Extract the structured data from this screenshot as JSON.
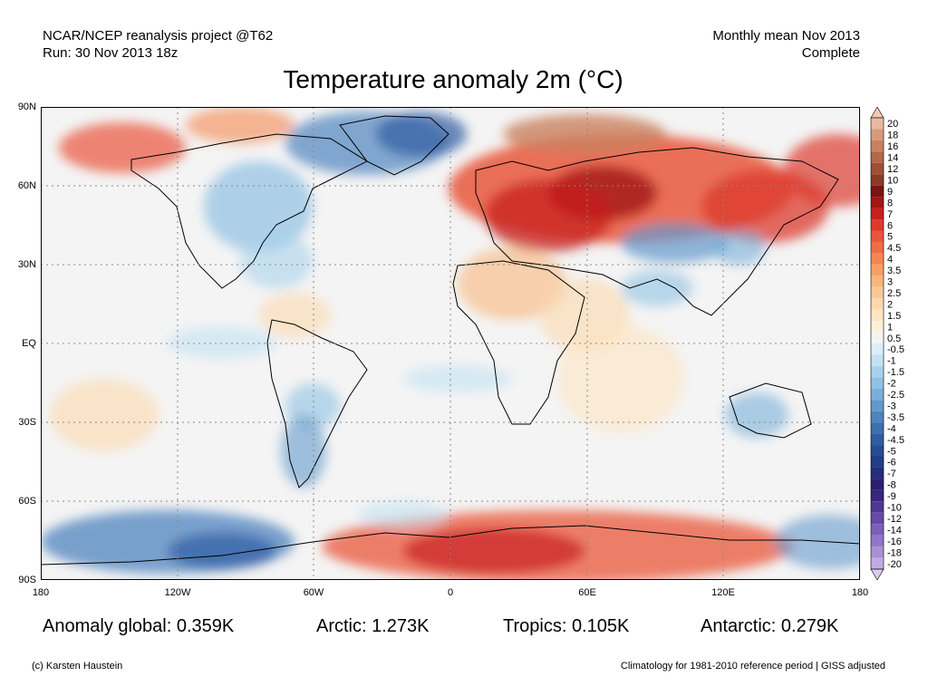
{
  "header": {
    "source_line1": "NCAR/NCEP reanalysis project @T62",
    "source_line2": "Run: 30 Nov 2013 18z",
    "period_line1": "Monthly mean Nov 2013",
    "period_line2": "Complete"
  },
  "title": "Temperature anomaly 2m (°C)",
  "lat_labels": [
    "90N",
    "60N",
    "30N",
    "EQ",
    "30S",
    "60S",
    "90S"
  ],
  "lon_labels": [
    "180",
    "120W",
    "60W",
    "0",
    "60E",
    "120E",
    "180"
  ],
  "legend": {
    "levels": [
      "20",
      "18",
      "16",
      "14",
      "12",
      "10",
      "9",
      "8",
      "7",
      "6",
      "5",
      "4.5",
      "4",
      "3.5",
      "3",
      "2.5",
      "2",
      "1.5",
      "1",
      "0.5",
      "-0.5",
      "-1",
      "-1.5",
      "-2",
      "-2.5",
      "-3",
      "-3.5",
      "-4",
      "-4.5",
      "-5",
      "-6",
      "-7",
      "-8",
      "-9",
      "-10",
      "-12",
      "-14",
      "-16",
      "-18",
      "-20"
    ],
    "colors": [
      "#e8b9a0",
      "#d99a7b",
      "#c9815f",
      "#b46848",
      "#a04f35",
      "#8c3a26",
      "#7a1414",
      "#a31515",
      "#c71f1f",
      "#dc3a2c",
      "#e9553b",
      "#ef6d42",
      "#f4874f",
      "#f6a063",
      "#f8b57c",
      "#fac897",
      "#fcd9ad",
      "#fde5c2",
      "#fef0d8",
      "#f4f4f4",
      "#dbeefa",
      "#c2e2f4",
      "#a8d2ec",
      "#8fc1e3",
      "#78afd9",
      "#6299cc",
      "#4f84bf",
      "#3e6fb0",
      "#305da2",
      "#264c95",
      "#213d87",
      "#252d7a",
      "#2c1f6e",
      "#3a2580",
      "#4f3695",
      "#6649aa",
      "#7c5fbc",
      "#9376ca",
      "#a98fd6",
      "#c2abe3"
    ],
    "top_arrow_color": "#f2c8b4",
    "bottom_arrow_color": "#d9ccf0"
  },
  "stats": {
    "global": "Anomaly global: 0.359K",
    "arctic": "Arctic: 1.273K",
    "tropics": "Tropics: 0.105K",
    "antarctic": "Antarctic: 0.279K"
  },
  "footer": {
    "credit": "(c) Karsten Haustein",
    "note": "Climatology for 1981-2010 reference period | GISS adjusted"
  }
}
